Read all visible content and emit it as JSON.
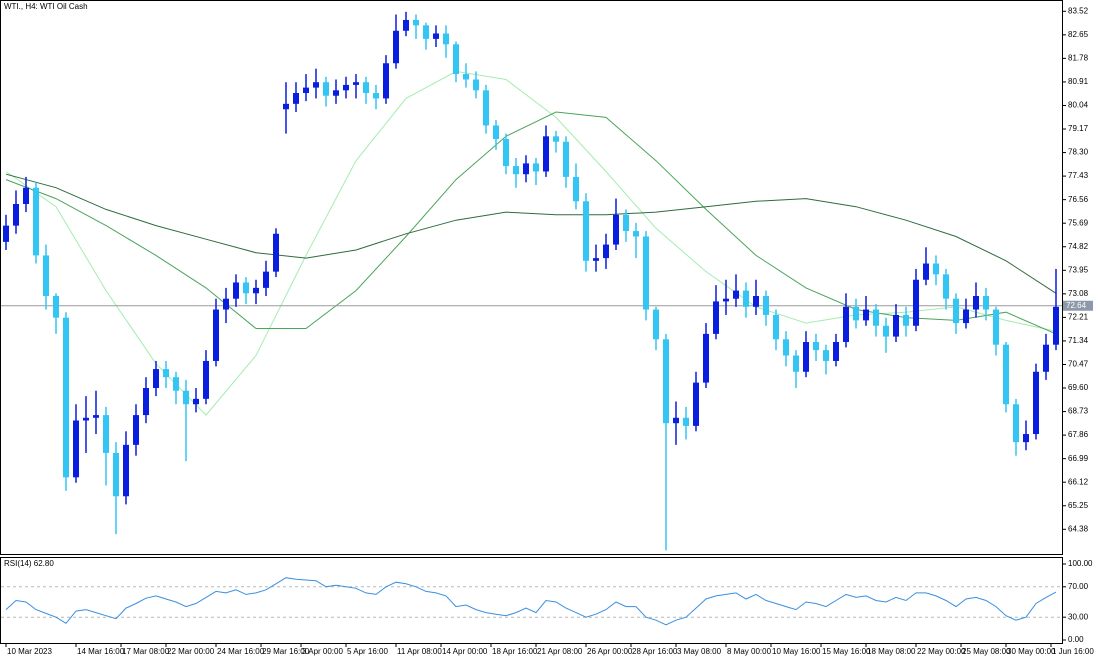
{
  "chart_data": [
    {
      "type": "candlestick",
      "title": "WTI., H4:  WTI Oil Cash",
      "open": [
        75.0,
        75.6,
        76.4,
        77.0,
        74.5,
        73.0,
        72.2,
        66.3,
        68.4,
        68.5,
        68.6,
        67.2,
        65.6,
        67.5,
        68.6,
        69.6,
        70.3,
        70.0,
        69.5,
        69.0,
        69.2,
        70.6,
        72.5,
        72.9,
        73.5,
        73.1,
        73.3,
        73.9,
        79.9,
        80.1,
        80.5,
        80.7,
        80.9,
        80.4,
        80.6,
        80.8,
        80.9,
        80.5,
        80.3,
        81.6,
        82.8,
        83.2,
        83.0,
        82.5,
        82.7,
        82.3,
        81.2,
        81.0,
        80.6,
        79.3,
        78.8,
        77.8,
        77.5,
        77.9,
        77.6,
        78.9,
        78.7,
        77.4,
        76.5,
        74.3,
        74.4,
        74.9,
        76.0,
        75.4,
        75.2,
        72.5,
        71.4,
        68.3,
        68.5,
        68.2,
        69.8,
        71.6,
        72.8,
        72.9,
        73.2,
        72.6,
        73.0,
        72.3,
        71.4,
        70.8,
        70.2,
        71.3,
        71.0,
        70.6,
        71.3,
        72.6,
        72.1,
        72.5,
        71.9,
        71.5,
        72.3,
        71.9,
        73.6,
        74.2,
        73.8,
        72.9,
        72.0,
        72.5,
        73.0,
        72.5,
        71.2,
        69.0,
        67.6,
        67.9,
        70.2,
        71.2
      ],
      "high": [
        76.0,
        76.9,
        77.4,
        77.2,
        74.9,
        73.1,
        72.4,
        69.0,
        69.3,
        69.5,
        68.9,
        67.6,
        68.0,
        69.0,
        70.0,
        70.6,
        70.6,
        70.2,
        69.9,
        69.6,
        71.0,
        72.9,
        73.3,
        73.8,
        73.7,
        73.6,
        74.3,
        75.5,
        80.9,
        80.9,
        81.2,
        81.4,
        81.1,
        81.0,
        81.1,
        81.2,
        81.1,
        80.8,
        81.9,
        83.4,
        83.5,
        83.4,
        83.1,
        83.0,
        83.0,
        82.4,
        81.6,
        81.3,
        80.8,
        79.5,
        79.0,
        78.1,
        78.2,
        78.1,
        79.3,
        79.1,
        78.9,
        77.9,
        76.8,
        74.9,
        75.3,
        76.6,
        76.2,
        75.7,
        75.4,
        72.6,
        71.6,
        69.1,
        68.9,
        70.2,
        72.0,
        73.4,
        73.6,
        73.8,
        73.5,
        73.6,
        73.2,
        72.5,
        71.7,
        71.0,
        71.7,
        71.6,
        71.2,
        71.6,
        73.1,
        72.9,
        73.0,
        72.7,
        72.2,
        72.7,
        72.6,
        74.0,
        74.8,
        74.5,
        74.0,
        73.1,
        72.9,
        73.5,
        73.3,
        72.6,
        71.3,
        69.2,
        68.4,
        70.5,
        71.6,
        74.0
      ],
      "low": [
        74.7,
        75.3,
        76.1,
        74.2,
        72.5,
        71.6,
        65.8,
        66.1,
        67.2,
        67.9,
        66.0,
        64.2,
        65.3,
        67.1,
        68.3,
        69.3,
        69.6,
        69.0,
        66.9,
        68.7,
        69.0,
        70.4,
        72.0,
        72.6,
        72.7,
        72.7,
        73.0,
        73.7,
        79.0,
        79.8,
        80.2,
        80.3,
        80.0,
        80.1,
        80.3,
        80.3,
        80.1,
        79.9,
        80.1,
        81.4,
        82.6,
        82.5,
        82.1,
        82.2,
        81.8,
        80.9,
        80.7,
        80.3,
        79.0,
        78.4,
        77.5,
        77.0,
        77.2,
        77.1,
        77.4,
        78.3,
        77.0,
        76.2,
        73.9,
        73.9,
        74.0,
        74.7,
        75.0,
        74.4,
        72.1,
        71.0,
        63.6,
        67.5,
        67.7,
        68.0,
        69.6,
        71.4,
        72.3,
        72.6,
        72.2,
        72.3,
        71.9,
        71.0,
        70.4,
        69.6,
        70.0,
        70.6,
        70.1,
        70.4,
        71.1,
        71.8,
        71.9,
        71.5,
        70.9,
        71.3,
        71.5,
        71.7,
        73.4,
        73.4,
        72.5,
        71.6,
        71.8,
        72.2,
        72.1,
        70.8,
        68.7,
        67.1,
        67.3,
        67.7,
        69.9,
        71.0
      ],
      "close": [
        75.6,
        76.4,
        77.0,
        74.5,
        73.0,
        72.2,
        66.3,
        68.4,
        68.5,
        68.6,
        67.2,
        65.6,
        67.5,
        68.6,
        69.6,
        70.3,
        70.0,
        69.5,
        69.0,
        69.2,
        70.6,
        72.5,
        72.9,
        73.5,
        73.1,
        73.3,
        73.9,
        75.3,
        80.1,
        80.5,
        80.7,
        80.9,
        80.4,
        80.6,
        80.8,
        80.9,
        80.5,
        80.3,
        81.6,
        82.8,
        83.2,
        83.0,
        82.5,
        82.7,
        82.3,
        81.2,
        81.0,
        80.6,
        79.3,
        78.8,
        77.8,
        77.5,
        77.9,
        77.6,
        78.9,
        78.7,
        77.4,
        76.5,
        74.3,
        74.4,
        74.9,
        76.0,
        75.4,
        75.2,
        72.5,
        71.4,
        68.3,
        68.5,
        68.2,
        69.8,
        71.6,
        72.8,
        72.9,
        73.2,
        72.6,
        73.0,
        72.3,
        71.4,
        70.8,
        70.2,
        71.3,
        71.0,
        70.6,
        71.3,
        72.6,
        72.1,
        72.5,
        71.9,
        71.5,
        72.3,
        71.9,
        73.6,
        74.2,
        73.8,
        72.9,
        72.0,
        72.5,
        73.0,
        72.5,
        71.2,
        69.0,
        67.6,
        67.9,
        70.2,
        71.2,
        72.6
      ],
      "up_color": "#0a1ee0",
      "down_color": "#33c6f5",
      "moving_averages": [
        {
          "color": "#a4ecb0",
          "x": [
            0,
            5,
            10,
            15,
            20,
            25,
            30,
            35,
            40,
            45,
            50,
            55,
            60,
            65,
            70,
            75,
            80,
            85,
            90,
            95,
            100,
            105
          ],
          "values": [
            77.6,
            76.3,
            73.2,
            70.5,
            68.6,
            70.8,
            74.5,
            78.0,
            80.3,
            81.3,
            81.0,
            79.6,
            77.6,
            75.5,
            73.9,
            72.6,
            72.0,
            72.3,
            72.4,
            72.6,
            72.1,
            71.7
          ]
        },
        {
          "color": "#4aa45c",
          "x": [
            0,
            5,
            10,
            15,
            20,
            25,
            30,
            35,
            40,
            45,
            50,
            55,
            60,
            65,
            70,
            75,
            80,
            85,
            90,
            95,
            100,
            105
          ],
          "values": [
            77.3,
            76.6,
            75.6,
            74.5,
            73.3,
            71.8,
            71.8,
            73.2,
            75.2,
            77.3,
            78.9,
            79.8,
            79.6,
            78.0,
            76.2,
            74.5,
            73.3,
            72.5,
            72.2,
            72.1,
            72.4,
            71.6
          ]
        },
        {
          "color": "#2f6b3d",
          "x": [
            0,
            5,
            10,
            15,
            20,
            25,
            30,
            35,
            40,
            45,
            50,
            55,
            60,
            65,
            70,
            75,
            80,
            85,
            90,
            95,
            100,
            105
          ],
          "values": [
            77.5,
            77.0,
            76.2,
            75.6,
            75.1,
            74.6,
            74.4,
            74.7,
            75.3,
            75.8,
            76.1,
            76.0,
            76.0,
            76.1,
            76.3,
            76.5,
            76.6,
            76.3,
            75.8,
            75.2,
            74.3,
            73.1
          ]
        }
      ],
      "current_price": 72.64,
      "xlim": [
        -0.5,
        105.6
      ],
      "xticks": [
        {
          "value": 0,
          "label": "10 Mar 2023"
        },
        {
          "value": 7,
          "label": "14 Mar 16:00"
        },
        {
          "value": 11.5,
          "label": "17 Mar 08:00"
        },
        {
          "value": 16,
          "label": "22 Mar 00:00"
        },
        {
          "value": 21,
          "label": "24 Mar 16:00"
        },
        {
          "value": 25.5,
          "label": "29 Mar 16:00"
        },
        {
          "value": 29.5,
          "label": "3 Apr 00:00"
        },
        {
          "value": 34,
          "label": "5 Apr 16:00"
        },
        {
          "value": 39,
          "label": "11 Apr 08:00"
        },
        {
          "value": 43.5,
          "label": "14 Apr 00:00"
        },
        {
          "value": 48.5,
          "label": "18 Apr 16:00"
        },
        {
          "value": 53,
          "label": "21 Apr 08:00"
        },
        {
          "value": 58,
          "label": "26 Apr 00:00"
        },
        {
          "value": 62.5,
          "label": "28 Apr 16:00"
        },
        {
          "value": 67,
          "label": "3 May 08:00"
        },
        {
          "value": 72,
          "label": "8 May 00:00"
        },
        {
          "value": 76.5,
          "label": "10 May 16:00"
        },
        {
          "value": 81.5,
          "label": "15 May 16:00"
        },
        {
          "value": 86,
          "label": "18 May 08:00"
        },
        {
          "value": 91,
          "label": "22 May 00:00"
        },
        {
          "value": 95.5,
          "label": "25 May 08:00"
        },
        {
          "value": 100,
          "label": "30 May 00:00"
        },
        {
          "value": 104.5,
          "label": "1 Jun 16:00"
        }
      ],
      "ylim": [
        63.43,
        83.9
      ],
      "yticks": [
        83.52,
        82.65,
        81.78,
        80.91,
        80.04,
        79.17,
        {
          "value": 78.3,
          "label": "78.30"
        },
        77.43,
        76.56,
        75.69,
        74.82,
        73.95,
        73.08,
        72.21,
        71.34,
        70.47,
        {
          "value": 69.6,
          "label": "69.60"
        },
        68.73,
        67.86,
        66.99,
        66.12,
        65.25,
        64.38
      ]
    },
    {
      "type": "line",
      "title": "RSI(14) 62.80",
      "color": "#3a8fe0",
      "values": [
        40,
        52,
        50,
        40,
        35,
        30,
        22,
        38,
        40,
        36,
        32,
        28,
        42,
        48,
        55,
        58,
        54,
        50,
        44,
        48,
        56,
        64,
        62,
        66,
        60,
        62,
        66,
        74,
        82,
        80,
        79,
        78,
        70,
        72,
        70,
        68,
        62,
        60,
        70,
        76,
        74,
        70,
        64,
        62,
        58,
        44,
        46,
        40,
        36,
        34,
        32,
        36,
        42,
        36,
        52,
        50,
        42,
        36,
        30,
        34,
        40,
        50,
        44,
        44,
        30,
        26,
        20,
        26,
        30,
        42,
        54,
        58,
        60,
        62,
        54,
        60,
        52,
        48,
        44,
        40,
        50,
        48,
        44,
        52,
        60,
        56,
        58,
        52,
        50,
        56,
        52,
        62,
        62,
        58,
        52,
        44,
        54,
        56,
        52,
        44,
        32,
        26,
        30,
        48,
        56,
        63
      ],
      "levels": [
        70,
        30
      ],
      "ylim": [
        0,
        100
      ],
      "yticks": [
        {
          "value": 100,
          "label": "100.00"
        },
        {
          "value": 70,
          "label": "70.00"
        },
        {
          "value": 30,
          "label": "30.00"
        },
        {
          "value": 0,
          "label": "0.00"
        }
      ]
    }
  ]
}
